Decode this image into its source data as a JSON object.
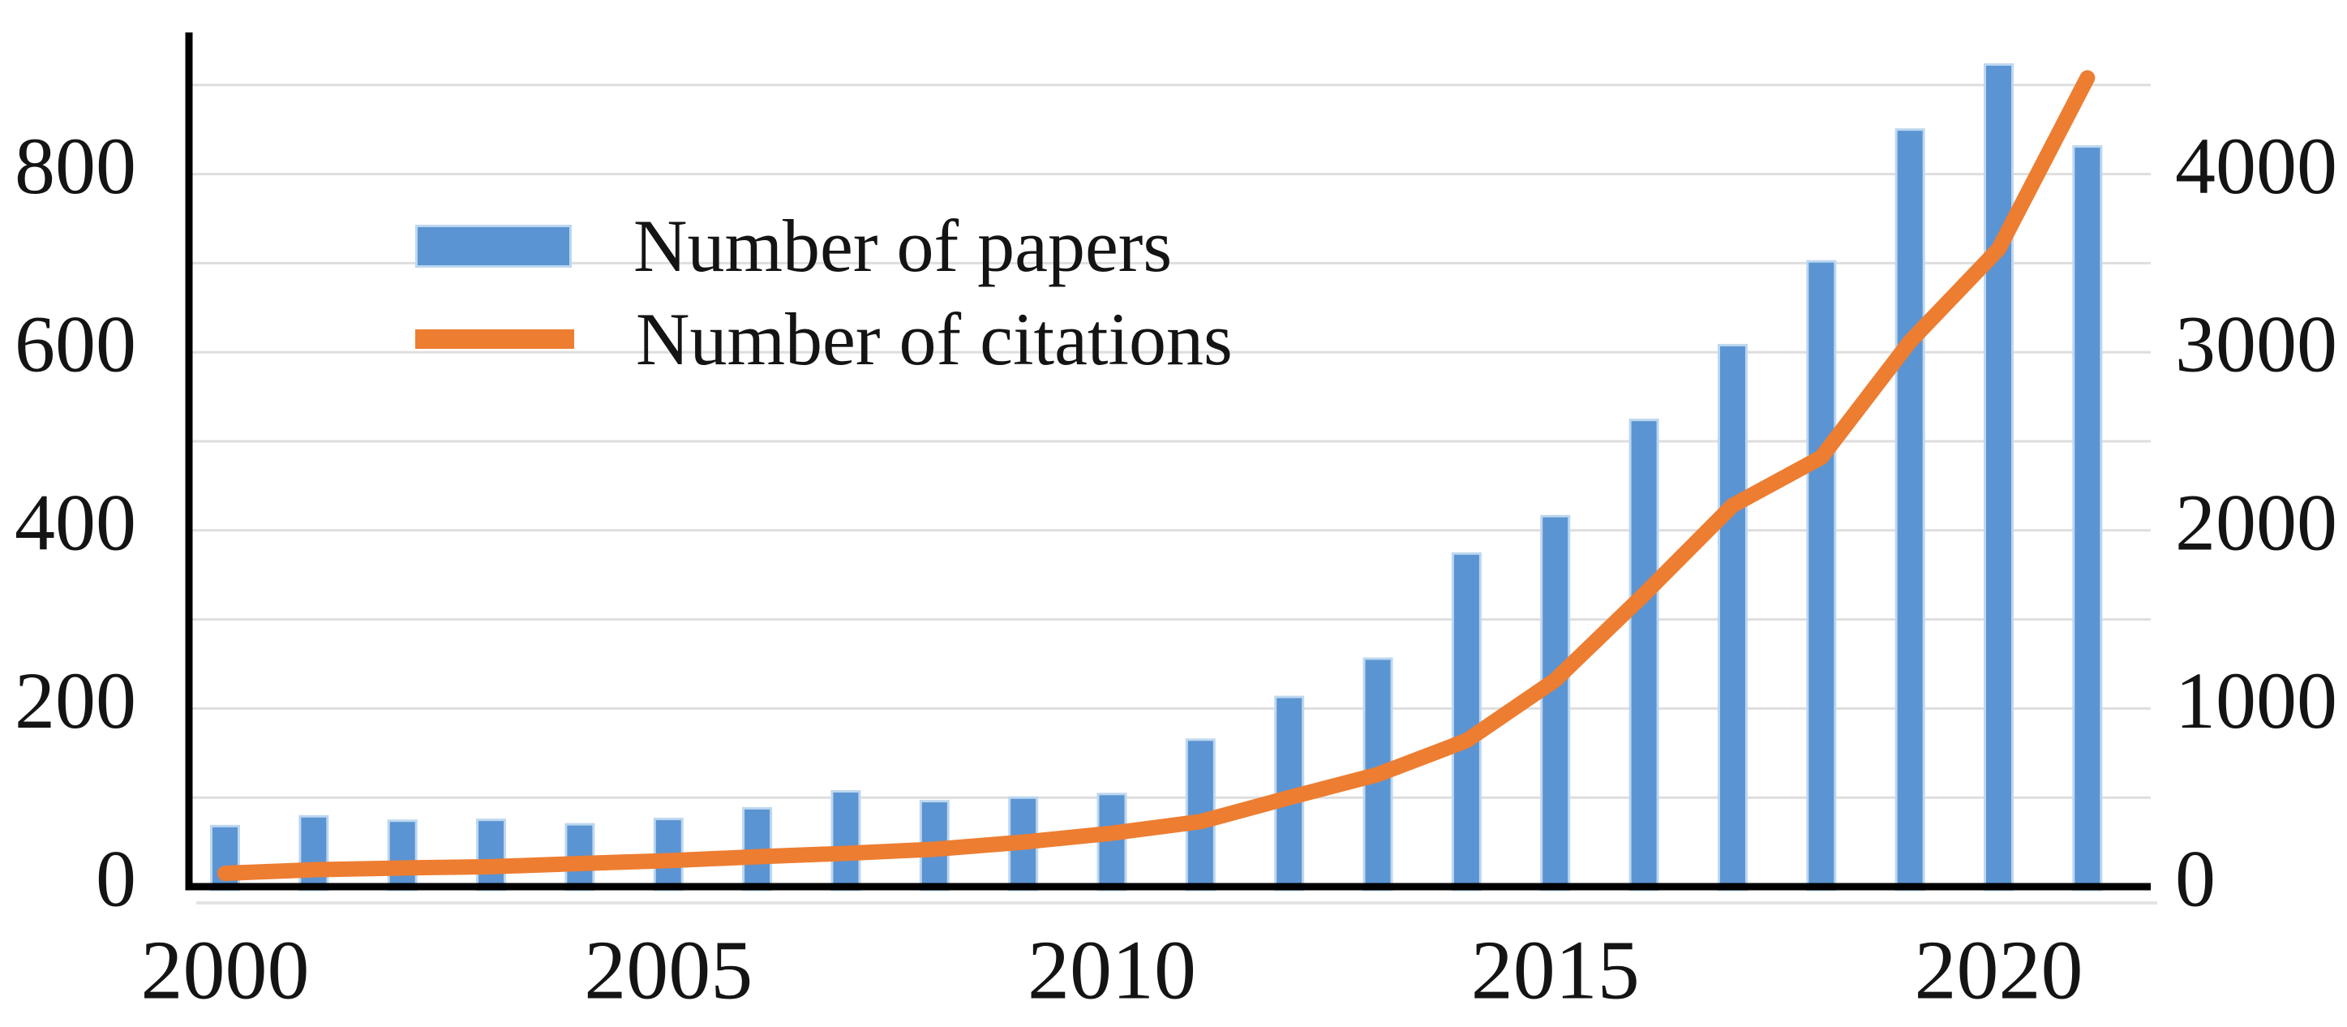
{
  "chart_data": {
    "type": "bar",
    "combo": "bar+line dual axis",
    "title": "",
    "categories": [
      2000,
      2001,
      2002,
      2003,
      2004,
      2005,
      2006,
      2007,
      2008,
      2009,
      2010,
      2011,
      2012,
      2013,
      2014,
      2015,
      2016,
      2017,
      2018,
      2019,
      2020,
      2021
    ],
    "series": [
      {
        "name": "Number of papers",
        "type": "bar",
        "axis": "left",
        "color": "#5B94D2",
        "values": [
          68,
          79,
          74,
          75,
          70,
          76,
          88,
          107,
          96,
          100,
          104,
          165,
          213,
          256,
          374,
          416,
          524,
          608,
          702,
          850,
          923,
          831
        ]
      },
      {
        "name": "Number of citations",
        "type": "line",
        "axis": "right",
        "color": "#ED7D31",
        "values": [
          75,
          95,
          105,
          112,
          130,
          146,
          168,
          187,
          210,
          250,
          300,
          365,
          500,
          630,
          820,
          1160,
          1640,
          2140,
          2410,
          3060,
          3580,
          4540
        ]
      }
    ],
    "left_axis": {
      "ticks": [
        0,
        200,
        400,
        600,
        800
      ],
      "range": [
        0,
        955
      ],
      "gridline_step": 100
    },
    "right_axis": {
      "ticks": [
        0,
        1000,
        2000,
        3000,
        4000
      ],
      "range": [
        0,
        4775
      ]
    },
    "x_tick_labels": [
      "2000",
      "2005",
      "2010",
      "2015",
      "2020"
    ],
    "x_tick_indices": [
      0,
      5,
      10,
      15,
      20
    ],
    "grid": true,
    "legend_position": "upper-left-inside"
  },
  "legend": {
    "items": [
      {
        "label": "Number of papers",
        "swatch": "bar"
      },
      {
        "label": "Number of citations",
        "swatch": "line"
      }
    ]
  },
  "colors": {
    "bar": "#5B94D2",
    "bar_border": "#BDD7EF",
    "line": "#ED7D31",
    "gridline": "#DEDEDE",
    "axis": "#000000",
    "text": "#141414",
    "background": "#FFFFFF"
  }
}
